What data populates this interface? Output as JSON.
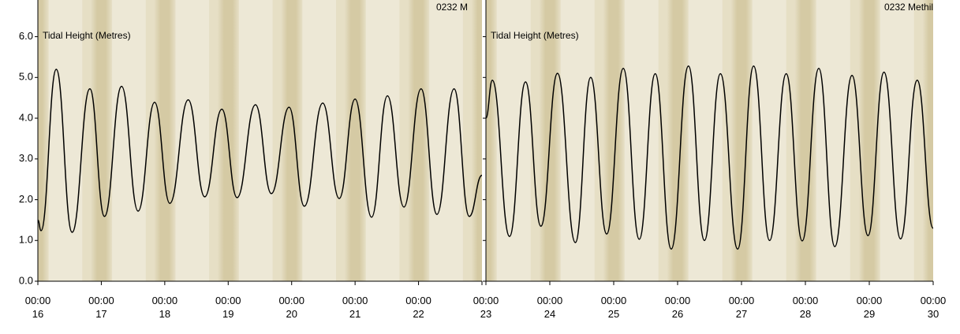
{
  "chart_data": [
    {
      "type": "line",
      "title": "0232 M",
      "y_label": "Tidal Height (Metres)",
      "xlim": [
        16,
        23
      ],
      "ylim": [
        0,
        6.9
      ],
      "xticks": [
        {
          "value": 16,
          "label": "00:00\n16"
        },
        {
          "value": 17,
          "label": "00:00\n17"
        },
        {
          "value": 18,
          "label": "00:00\n18"
        },
        {
          "value": 19,
          "label": "00:00\n19"
        },
        {
          "value": 20,
          "label": "00:00\n20"
        },
        {
          "value": 21,
          "label": "00:00\n21"
        },
        {
          "value": 22,
          "label": "00:00\n22"
        },
        {
          "value": 23,
          "label": "00:00\n23"
        }
      ],
      "yticks": [
        {
          "value": 0,
          "label": "0.0"
        },
        {
          "value": 1,
          "label": "1.0"
        },
        {
          "value": 2,
          "label": "2.0"
        },
        {
          "value": 3,
          "label": "3.0"
        },
        {
          "value": 4,
          "label": "4.0"
        },
        {
          "value": 5,
          "label": "5.0"
        },
        {
          "value": 6,
          "label": "6.0"
        }
      ],
      "series": [
        {
          "color": "#000000",
          "x": [
            16.0,
            16.05,
            16.29,
            16.54,
            16.82,
            17.05,
            17.32,
            17.58,
            17.84,
            18.08,
            18.37,
            18.63,
            18.9,
            19.14,
            19.43,
            19.68,
            19.96,
            20.2,
            20.49,
            20.75,
            21.0,
            21.26,
            21.51,
            21.77,
            22.04,
            22.29,
            22.56,
            22.8,
            23.0
          ],
          "values": [
            1.5,
            1.24,
            5.2,
            1.2,
            4.72,
            1.59,
            4.78,
            1.72,
            4.39,
            1.91,
            4.45,
            2.07,
            4.22,
            2.05,
            4.33,
            2.15,
            4.27,
            1.84,
            4.37,
            2.03,
            4.47,
            1.57,
            4.55,
            1.82,
            4.72,
            1.64,
            4.72,
            1.59,
            2.6
          ]
        }
      ]
    },
    {
      "type": "line",
      "title": "0232 Methil",
      "y_label": "Tidal Height (Metres)",
      "xlim": [
        23,
        30
      ],
      "ylim": [
        0,
        6.9
      ],
      "xticks": [
        {
          "value": 23,
          "label": "00:00\n23"
        },
        {
          "value": 24,
          "label": "00:00\n24"
        },
        {
          "value": 25,
          "label": "00:00\n25"
        },
        {
          "value": 26,
          "label": "00:00\n26"
        },
        {
          "value": 27,
          "label": "00:00\n27"
        },
        {
          "value": 28,
          "label": "00:00\n28"
        },
        {
          "value": 29,
          "label": "00:00\n29"
        },
        {
          "value": 30,
          "label": "00:00\n30"
        }
      ],
      "yticks": [
        0,
        1,
        2,
        3,
        4,
        5,
        6
      ],
      "series": [
        {
          "color": "#000000",
          "x": [
            23.0,
            23.1,
            23.37,
            23.62,
            23.86,
            24.12,
            24.4,
            24.64,
            24.89,
            25.15,
            25.4,
            25.65,
            25.9,
            26.17,
            26.42,
            26.67,
            26.94,
            27.19,
            27.44,
            27.7,
            27.95,
            28.21,
            28.46,
            28.73,
            28.98,
            29.23,
            29.49,
            29.75,
            30.0
          ],
          "values": [
            4.0,
            4.93,
            1.1,
            4.89,
            1.35,
            5.1,
            0.95,
            5.0,
            1.16,
            5.22,
            1.03,
            5.09,
            0.79,
            5.28,
            1.0,
            5.09,
            0.79,
            5.28,
            1.0,
            5.09,
            0.99,
            5.22,
            0.85,
            5.05,
            1.12,
            5.13,
            1.04,
            4.93,
            1.3
          ]
        }
      ]
    }
  ]
}
